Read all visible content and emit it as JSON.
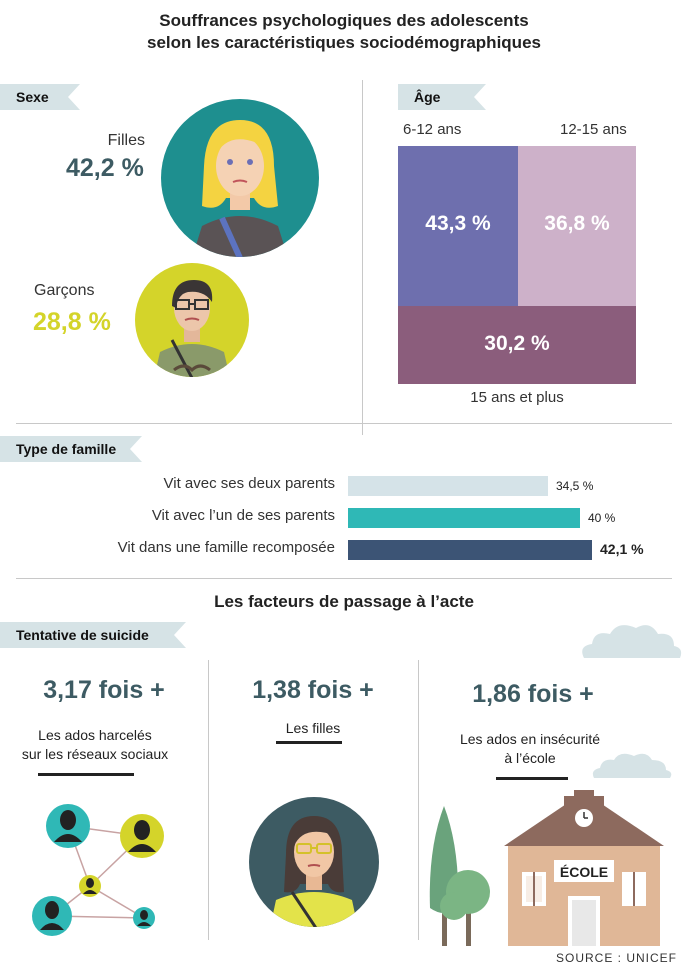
{
  "title_line1": "Souffrances psychologiques des adolescents",
  "title_line2": "selon les caractéristiques sociodémographiques",
  "sexe": {
    "section": "Sexe",
    "filles_label": "Filles",
    "filles_value": "42,2 %",
    "garcons_label": "Garçons",
    "garcons_value": "28,8 %"
  },
  "age": {
    "section": "Âge",
    "label_6_12": "6-12 ans",
    "label_12_15": "12-15 ans",
    "label_15_plus": "15 ans et plus",
    "value_6_12": "43,3 %",
    "value_12_15": "36,8 %",
    "value_15_plus": "30,2 %"
  },
  "famille": {
    "section": "Type de famille"
  },
  "facteurs_title": "Les facteurs de passage à l’acte",
  "suicide": {
    "section": "Tentative de suicide",
    "items": [
      {
        "fois": "3,17 fois +",
        "line1": "Les ados harcelés",
        "line2": "sur les réseaux sociaux"
      },
      {
        "fois": "1,38 fois +",
        "line1": "Les filles",
        "line2": ""
      },
      {
        "fois": "1,86 fois +",
        "line1": "Les ados en insécurité",
        "line2": "à l’école"
      }
    ],
    "school_sign": "ÉCOLE"
  },
  "source": "SOURCE : UNICEF",
  "colors": {
    "teal_dark": "#3d5b63",
    "yellow": "#d4d42a",
    "circle_teal": "#1e8f8f",
    "age_6_12": "#6e6fae",
    "age_12_15": "#cdb1c9",
    "age_15_plus": "#8b5d7c",
    "fam_both": "#d5e3e8",
    "fam_one": "#2fb8b6",
    "fam_recomp": "#3c5475"
  },
  "chart_data": [
    {
      "type": "bar",
      "title": "Sexe",
      "categories": [
        "Filles",
        "Garçons"
      ],
      "values": [
        42.2,
        28.8
      ]
    },
    {
      "type": "heatmap",
      "title": "Âge",
      "categories": [
        "6-12 ans",
        "12-15 ans",
        "15 ans et plus"
      ],
      "values": [
        43.3,
        36.8,
        30.2
      ]
    },
    {
      "type": "bar",
      "title": "Type de famille",
      "categories": [
        "Vit avec ses deux parents",
        "Vit avec l’un de ses parents",
        "Vit dans une famille recomposée"
      ],
      "values": [
        34.5,
        40,
        42.1
      ],
      "value_labels": [
        "34,5 %",
        "40 %",
        "42,1 %"
      ],
      "xlim": [
        0,
        42.1
      ]
    },
    {
      "type": "bar",
      "title": "Tentative de suicide",
      "categories": [
        "Les ados harcelés sur les réseaux sociaux",
        "Les filles",
        "Les ados en insécurité à l’école"
      ],
      "values": [
        3.17,
        1.38,
        1.86
      ]
    }
  ]
}
